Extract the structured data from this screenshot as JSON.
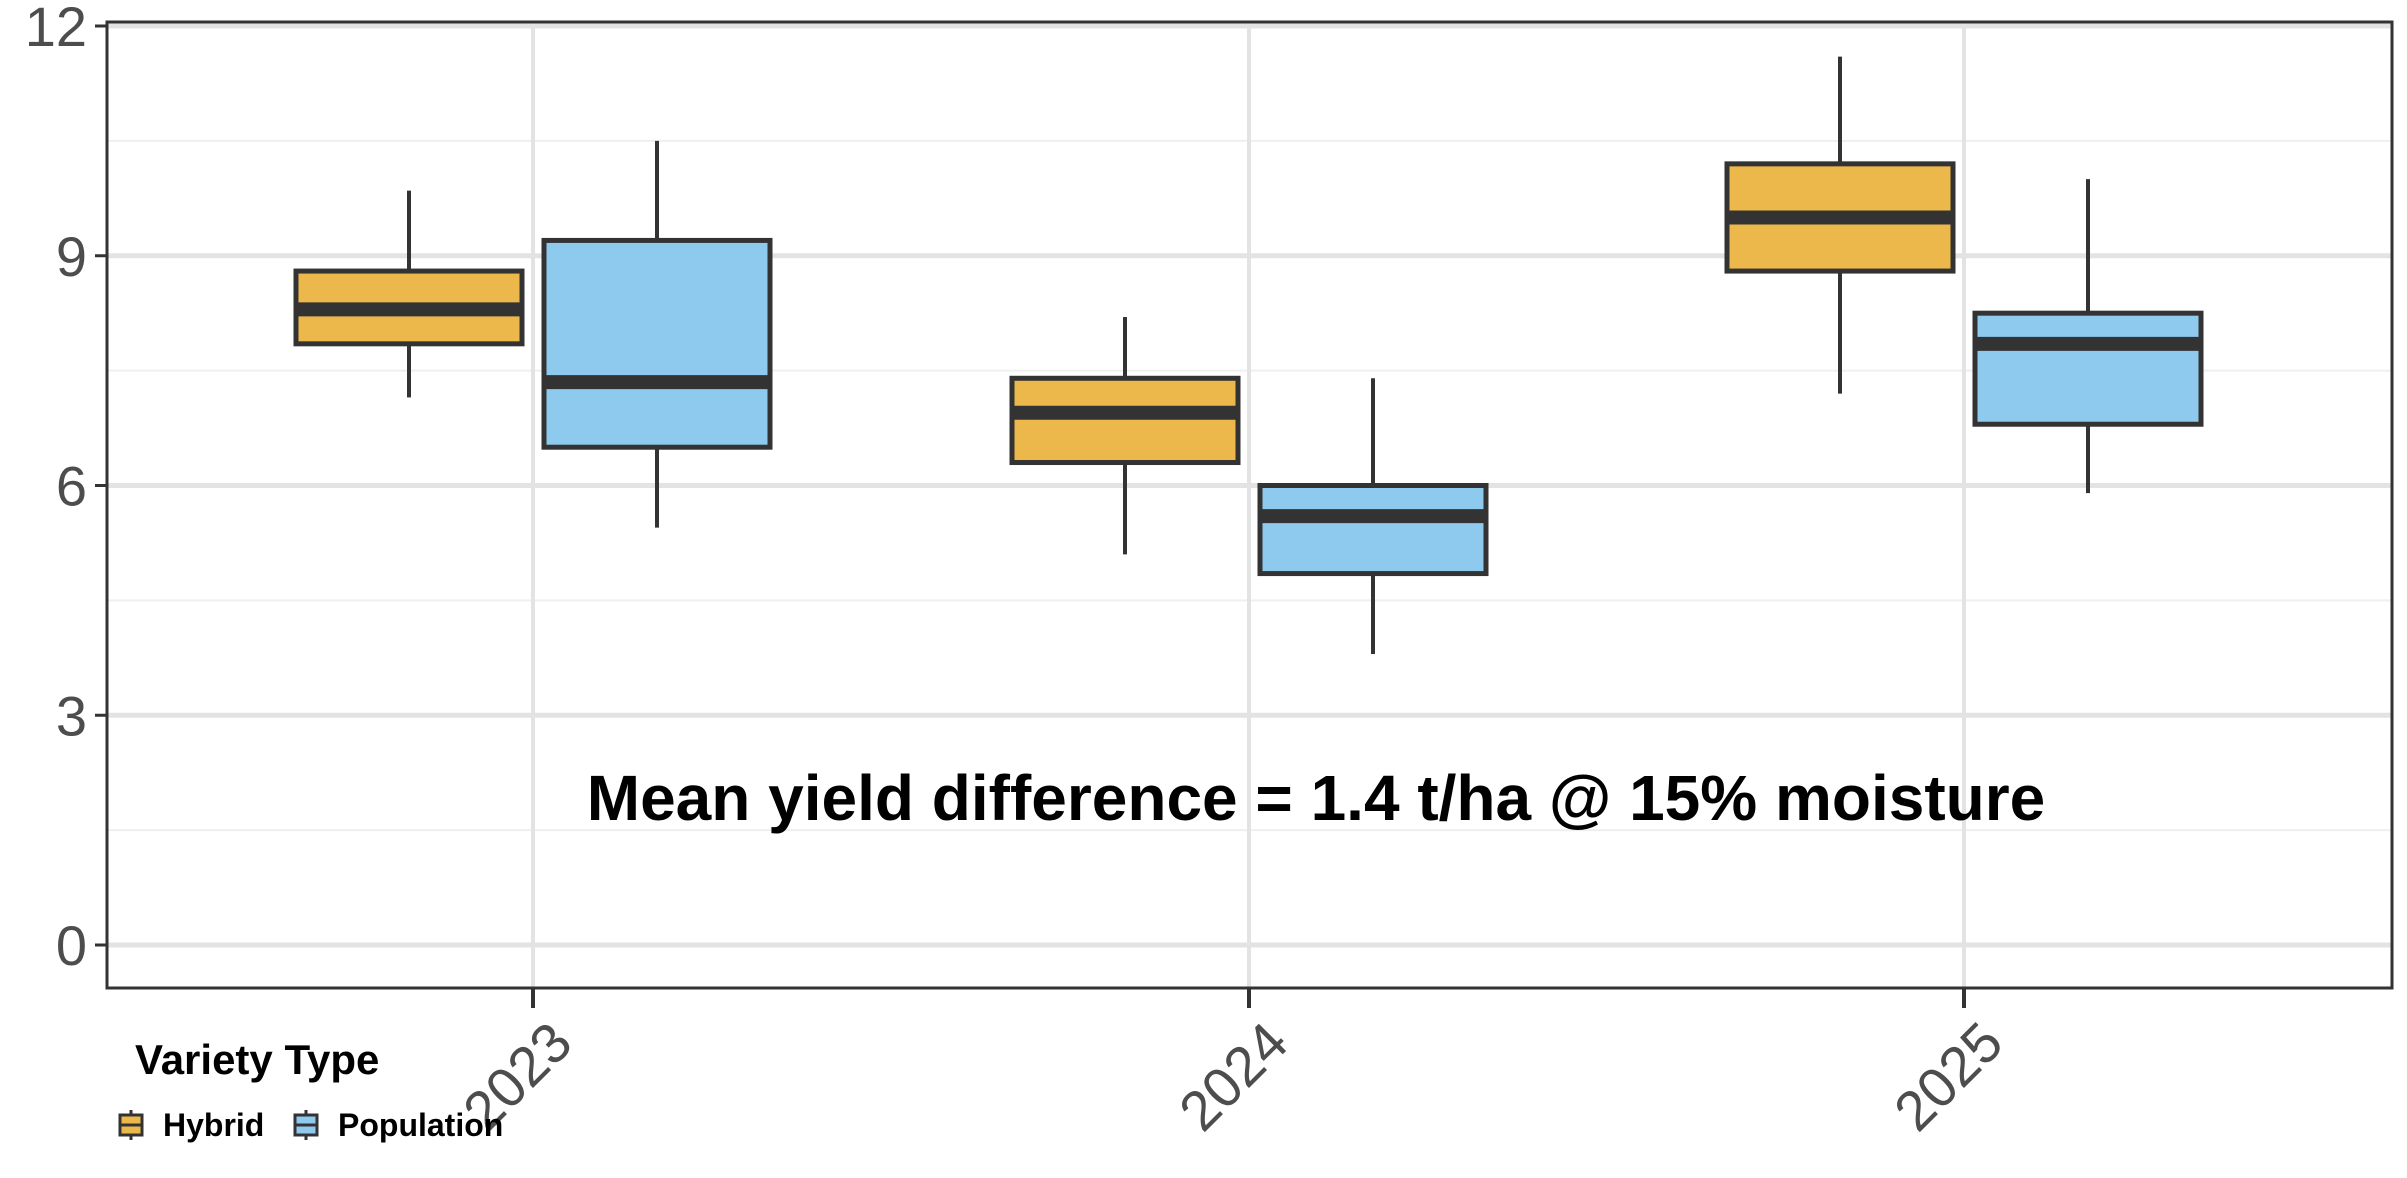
{
  "chart_data": {
    "type": "boxplot",
    "title": "",
    "xlabel": "",
    "ylabel": "",
    "categories": [
      "2023",
      "2024",
      "2025"
    ],
    "ylim": [
      -0.5,
      12
    ],
    "yticks": [
      0,
      3,
      6,
      9,
      12
    ],
    "grid": true,
    "legend": {
      "title": "Variety Type",
      "placement": "bottom-left"
    },
    "series": [
      {
        "name": "Hybrid",
        "color": "#EDB84B",
        "boxes": [
          {
            "min": 7.15,
            "q1": 7.85,
            "median": 8.3,
            "q3": 8.8,
            "max": 9.85
          },
          {
            "min": 5.1,
            "q1": 6.3,
            "median": 6.95,
            "q3": 7.4,
            "max": 8.2
          },
          {
            "min": 7.2,
            "q1": 8.8,
            "median": 9.5,
            "q3": 10.2,
            "max": 11.6
          }
        ]
      },
      {
        "name": "Population",
        "color": "#8DCAEE",
        "boxes": [
          {
            "min": 5.45,
            "q1": 6.5,
            "median": 7.35,
            "q3": 9.2,
            "max": 10.5
          },
          {
            "min": 3.8,
            "q1": 4.85,
            "median": 5.6,
            "q3": 6.0,
            "max": 7.4
          },
          {
            "min": 5.9,
            "q1": 6.8,
            "median": 7.85,
            "q3": 8.25,
            "max": 10.0
          }
        ]
      }
    ],
    "annotations": [
      {
        "text": "Mean yield difference = 1.4 t/ha @ 15% moisture",
        "x": 2024,
        "y": 1.9
      }
    ]
  }
}
